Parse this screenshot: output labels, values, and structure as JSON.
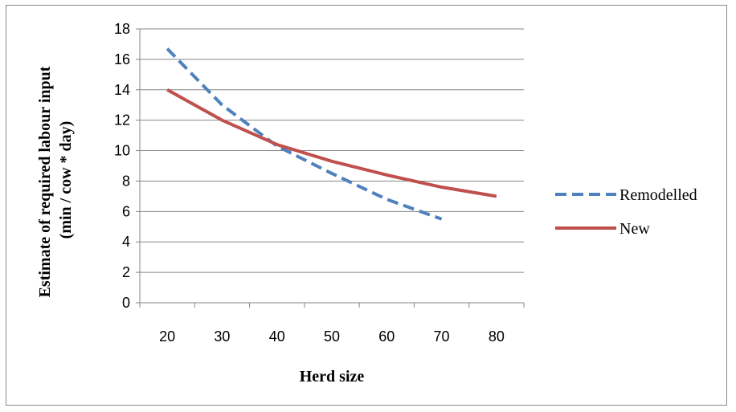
{
  "chart_data": {
    "type": "line",
    "title": "",
    "xlabel": "Herd size",
    "ylabel_lines": [
      "Estimate of required labour input",
      "(min / cow * day)"
    ],
    "categories": [
      "20",
      "30",
      "40",
      "50",
      "60",
      "70",
      "80"
    ],
    "ylim": [
      0,
      18
    ],
    "yticks": [
      "0",
      "2",
      "4",
      "6",
      "8",
      "10",
      "12",
      "14",
      "16",
      "18"
    ],
    "grid": "horizontal",
    "legend_position": "right",
    "series": [
      {
        "name": "Remodelled",
        "color": "#4f81bd",
        "dash": "dashed",
        "values": [
          16.7,
          13.0,
          10.3,
          8.5,
          6.8,
          5.5,
          null
        ]
      },
      {
        "name": "New",
        "color": "#c0504d",
        "dash": "solid",
        "values": [
          14.0,
          12.0,
          10.4,
          9.3,
          8.4,
          7.6,
          7.0
        ]
      }
    ]
  }
}
